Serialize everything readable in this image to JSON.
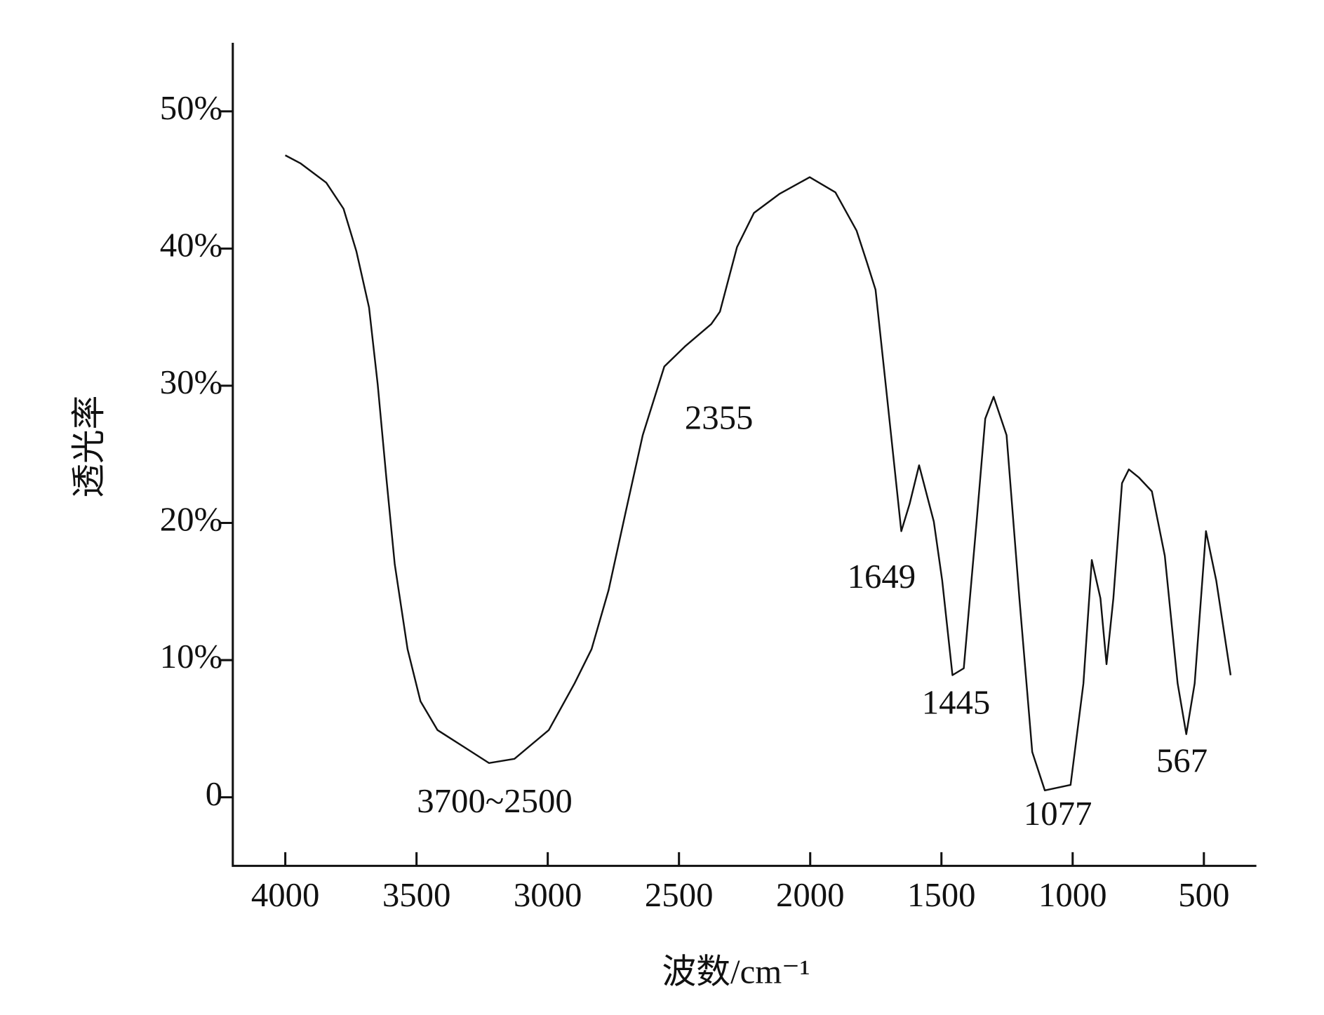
{
  "chart_data": {
    "type": "line",
    "x_label": "波数/cm⁻¹",
    "y_label": "透光率",
    "xlim": [
      4200,
      300
    ],
    "ylim": [
      -5,
      55
    ],
    "xticks": [
      4000,
      3500,
      3000,
      2500,
      2000,
      1500,
      1000,
      500
    ],
    "yticks": [
      0,
      {
        "value": 10,
        "label": "10%"
      },
      {
        "value": 20,
        "label": "20%"
      },
      {
        "value": 30,
        "label": "30%"
      },
      {
        "value": 40,
        "label": "40%"
      },
      {
        "value": 50,
        "label": "50%"
      }
    ],
    "annotations": [
      "3700~2500",
      "2355",
      "1649",
      "1445",
      "1077",
      "567"
    ],
    "series": [
      {
        "color": "#111111",
        "x": [
          4000,
          3941,
          3844,
          3778,
          3729,
          3681,
          3648,
          3615,
          3583,
          3534,
          3485,
          3420,
          3322,
          3224,
          3127,
          2996,
          2898,
          2833,
          2768,
          2703,
          2638,
          2556,
          2475,
          2377,
          2344,
          2279,
          2214,
          2116,
          2002,
          1904,
          1823,
          1784,
          1751,
          1709,
          1653,
          1621,
          1585,
          1529,
          1497,
          1458,
          1415,
          1366,
          1333,
          1301,
          1252,
          1203,
          1154,
          1106,
          1008,
          959,
          927,
          894,
          871,
          845,
          812,
          786,
          747,
          698,
          649,
          600,
          567,
          535,
          492,
          453,
          398
        ],
        "values": [
          46.8,
          46.2,
          44.8,
          42.9,
          39.8,
          35.7,
          30.1,
          23.3,
          17.0,
          10.8,
          7.0,
          4.9,
          3.7,
          2.5,
          2.8,
          4.9,
          8.3,
          10.8,
          15.1,
          20.8,
          26.4,
          31.4,
          32.9,
          34.5,
          35.4,
          40.1,
          42.6,
          44.0,
          45.2,
          44.1,
          41.3,
          39.0,
          37.0,
          29.5,
          19.4,
          21.4,
          24.2,
          20.1,
          15.8,
          8.9,
          9.4,
          20.1,
          27.6,
          29.2,
          26.4,
          14.5,
          3.3,
          0.5,
          0.9,
          8.3,
          17.3,
          14.5,
          9.7,
          14.5,
          22.9,
          23.9,
          23.3,
          22.3,
          17.6,
          8.3,
          4.6,
          8.3,
          19.4,
          15.8,
          8.9
        ]
      }
    ]
  }
}
